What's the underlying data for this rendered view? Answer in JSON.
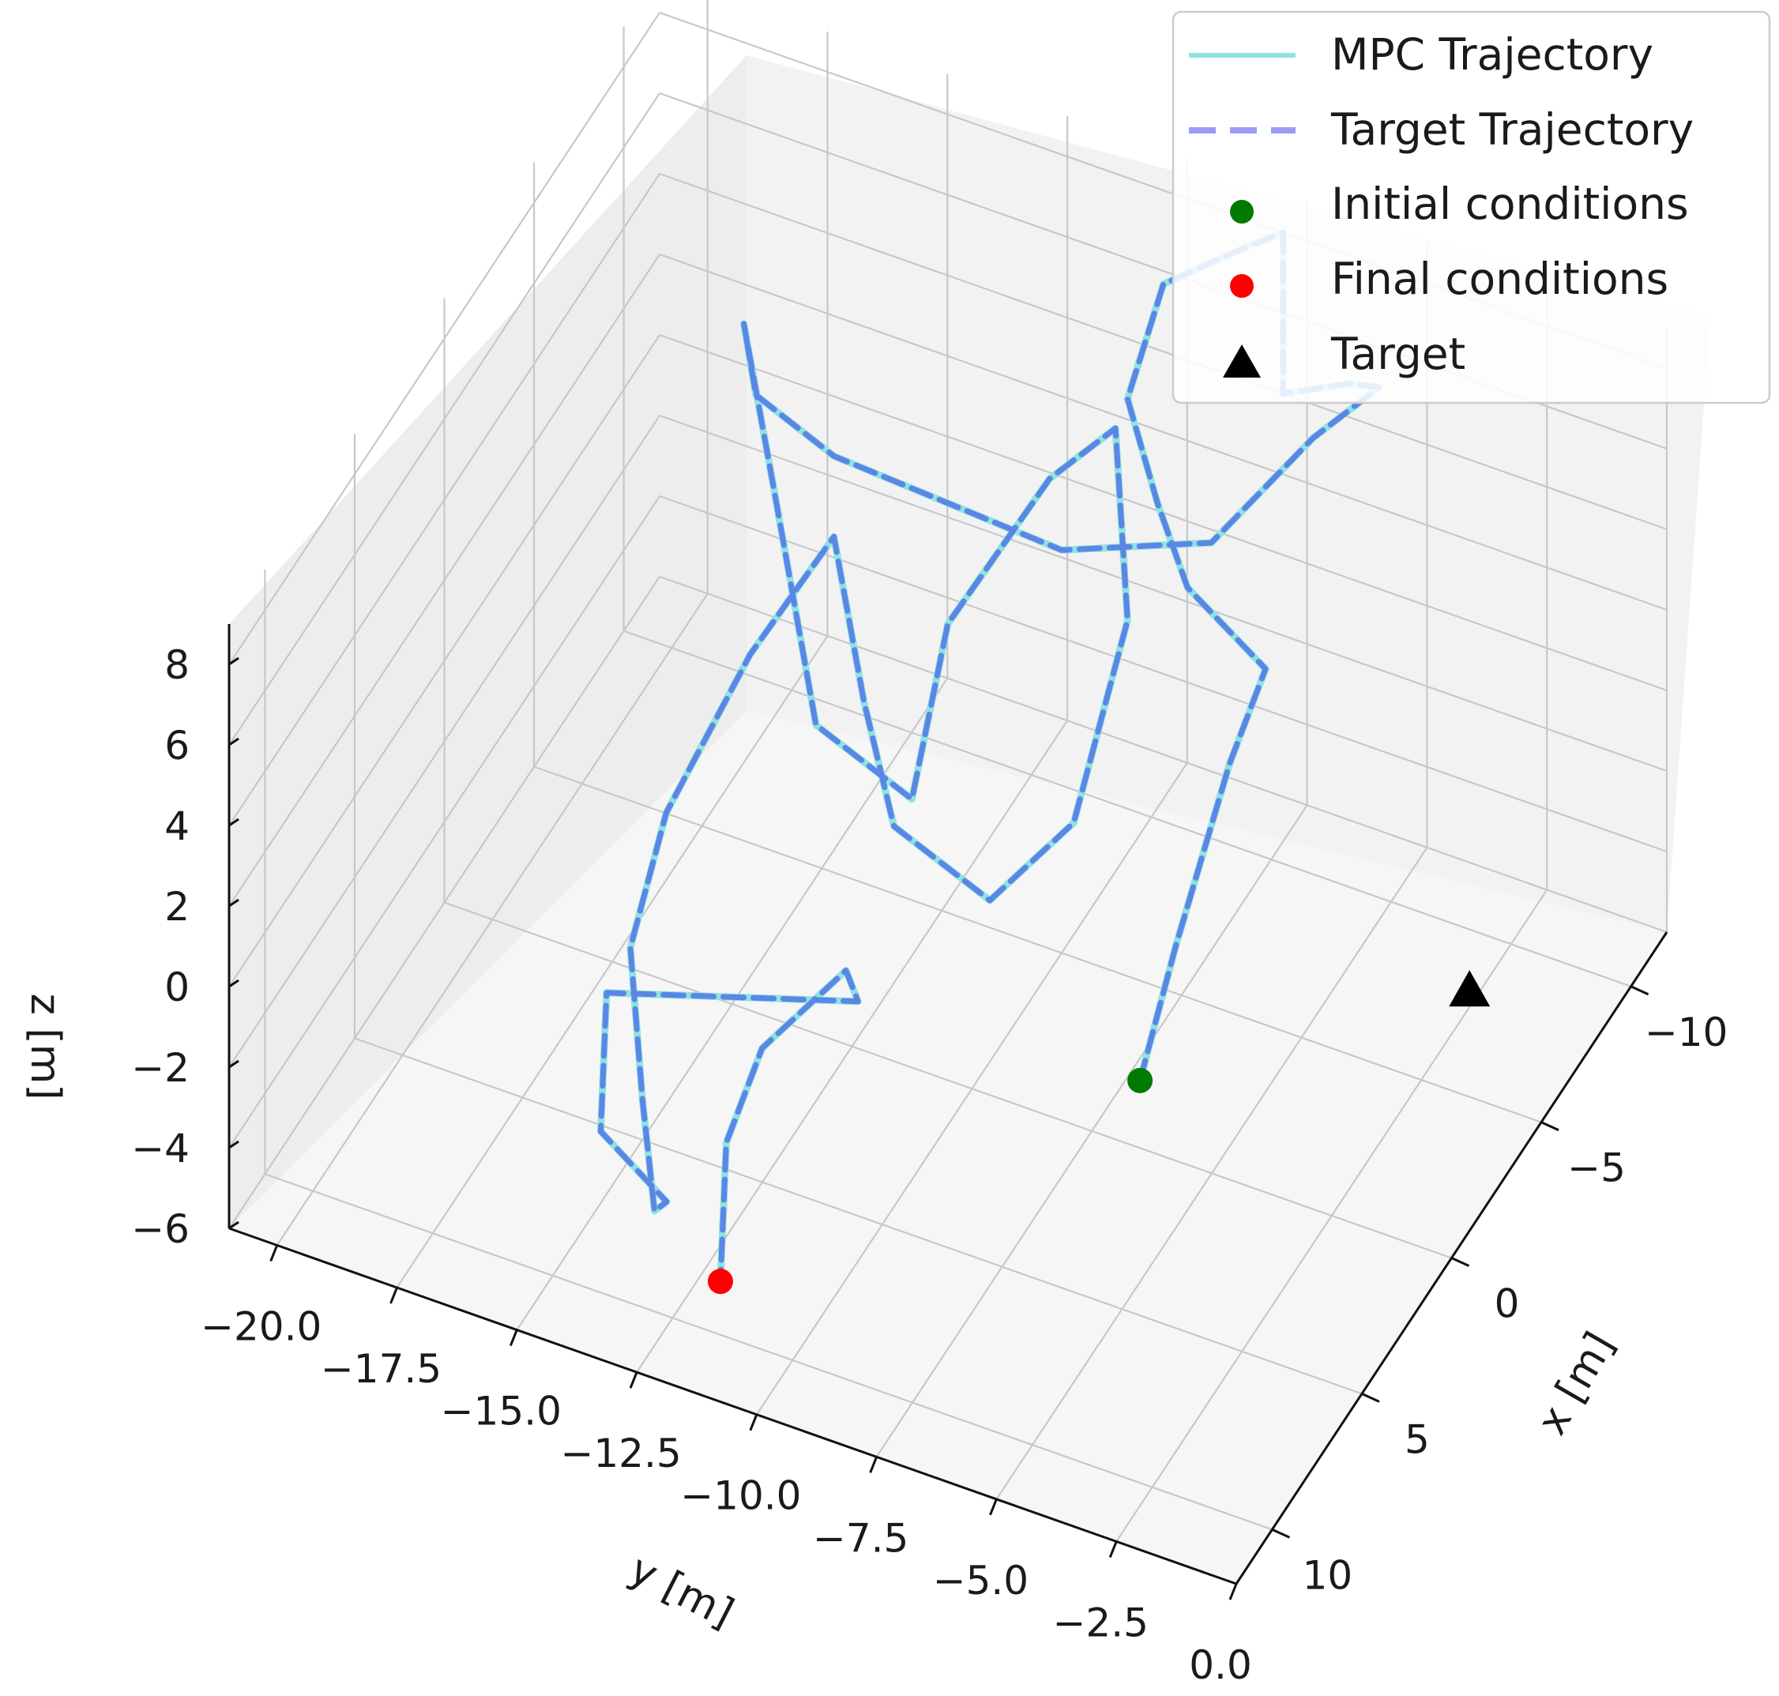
{
  "chart_data": {
    "type": "line3d",
    "title": "",
    "xlabel": "x [m]",
    "ylabel": "y [m]",
    "zlabel": "z [m]",
    "x_ticks": [
      "−10",
      "−5",
      "0",
      "5",
      "10"
    ],
    "y_ticks": [
      "−20.0",
      "−17.5",
      "−15.0",
      "−12.5",
      "−10.0",
      "−7.5",
      "−5.0",
      "−2.5",
      "0.0"
    ],
    "z_ticks": [
      "−6",
      "−4",
      "−2",
      "0",
      "2",
      "4",
      "6",
      "8"
    ],
    "xlim": [
      -12,
      12
    ],
    "ylim": [
      -21,
      0
    ],
    "zlim": [
      -6,
      9
    ],
    "grid": true,
    "legend": {
      "placement": "top-right",
      "entries": [
        {
          "label": "MPC Trajectory",
          "marker": "line",
          "color": "#8fe3e0"
        },
        {
          "label": "Target Trajectory",
          "marker": "dashed-line",
          "color": "#9b9bf6"
        },
        {
          "label": "Initial conditions",
          "marker": "circle",
          "color": "#007a00"
        },
        {
          "label": "Final conditions",
          "marker": "circle",
          "color": "#ff0000"
        },
        {
          "label": "Target",
          "marker": "triangle",
          "color": "#000000"
        }
      ]
    },
    "series": [
      {
        "name": "MPC Trajectory",
        "color": "#8fe3e0",
        "points_xyz": [
          [
            4,
            -5,
            -1
          ],
          [
            2,
            -5,
            1
          ],
          [
            -1,
            -5,
            3.5
          ],
          [
            -3,
            -5,
            4.5
          ],
          [
            -4,
            -7,
            5
          ],
          [
            -5,
            -8,
            6
          ],
          [
            -6,
            -9,
            7.5
          ],
          [
            -8,
            -9,
            9
          ],
          [
            -10,
            -8,
            9
          ],
          [
            -12,
            -8,
            8
          ],
          [
            -12,
            -8,
            4
          ],
          [
            -13,
            -7,
            4
          ],
          [
            -12,
            -6,
            5
          ],
          [
            -11,
            -7,
            4
          ],
          [
            -8,
            -8,
            3
          ],
          [
            -5,
            -10,
            4
          ],
          [
            -4,
            -12,
            5
          ],
          [
            -3,
            -14,
            6
          ],
          [
            -4,
            -16,
            6
          ],
          [
            -6,
            -17,
            6
          ],
          [
            -5,
            -16,
            3
          ],
          [
            -2,
            -14,
            0
          ],
          [
            -2,
            -12,
            -1
          ],
          [
            -4,
            -12,
            2
          ],
          [
            -7,
            -11,
            4
          ],
          [
            -8,
            -10,
            5
          ],
          [
            -6,
            -9,
            2
          ],
          [
            -3,
            -9,
            -1
          ],
          [
            -1,
            -10,
            -2
          ],
          [
            -1,
            -12,
            -1
          ],
          [
            -2,
            -13,
            1
          ],
          [
            -3,
            -14,
            4
          ],
          [
            -1,
            -15,
            2
          ],
          [
            1,
            -16,
            -1
          ],
          [
            3,
            -16,
            -3
          ],
          [
            5,
            -15,
            -5
          ],
          [
            7,
            -14,
            -6
          ],
          [
            9,
            -13,
            -4
          ],
          [
            10,
            -14,
            -2
          ],
          [
            7,
            -15,
            -1
          ],
          [
            5,
            -14,
            -2
          ],
          [
            3,
            -13,
            -3
          ],
          [
            1,
            -12,
            -4
          ],
          [
            -1,
            -13,
            -5
          ],
          [
            1,
            -14,
            -6
          ],
          [
            3,
            -14,
            -7
          ],
          [
            6,
            -13,
            -8
          ]
        ]
      },
      {
        "name": "Target Trajectory",
        "color": "#9b9bf6",
        "points_xyz": [
          [
            4,
            -5,
            -1
          ],
          [
            2,
            -5,
            1
          ],
          [
            -1,
            -5,
            3.5
          ],
          [
            -3,
            -5,
            4.5
          ],
          [
            -4,
            -7,
            5
          ],
          [
            -5,
            -8,
            6
          ],
          [
            -6,
            -9,
            7.5
          ],
          [
            -8,
            -9,
            9
          ],
          [
            -10,
            -8,
            9
          ],
          [
            -12,
            -8,
            8
          ],
          [
            -12,
            -8,
            4
          ],
          [
            -13,
            -7,
            4
          ],
          [
            -12,
            -6,
            5
          ],
          [
            -11,
            -7,
            4
          ],
          [
            -8,
            -8,
            3
          ],
          [
            -5,
            -10,
            4
          ],
          [
            -4,
            -12,
            5
          ],
          [
            -3,
            -14,
            6
          ],
          [
            -4,
            -16,
            6
          ],
          [
            -6,
            -17,
            6
          ],
          [
            -5,
            -16,
            3
          ],
          [
            -2,
            -14,
            0
          ],
          [
            -2,
            -12,
            -1
          ],
          [
            -4,
            -12,
            2
          ],
          [
            -7,
            -11,
            4
          ],
          [
            -8,
            -10,
            5
          ],
          [
            -6,
            -9,
            2
          ],
          [
            -3,
            -9,
            -1
          ],
          [
            -1,
            -10,
            -2
          ],
          [
            -1,
            -12,
            -1
          ],
          [
            -2,
            -13,
            1
          ],
          [
            -3,
            -14,
            4
          ],
          [
            -1,
            -15,
            2
          ],
          [
            1,
            -16,
            -1
          ],
          [
            3,
            -16,
            -3
          ],
          [
            5,
            -15,
            -5
          ],
          [
            7,
            -14,
            -6
          ],
          [
            9,
            -13,
            -4
          ],
          [
            10,
            -14,
            -2
          ],
          [
            7,
            -15,
            -1
          ],
          [
            5,
            -14,
            -2
          ],
          [
            3,
            -13,
            -3
          ],
          [
            1,
            -12,
            -4
          ],
          [
            -1,
            -13,
            -5
          ],
          [
            1,
            -14,
            -6
          ],
          [
            3,
            -14,
            -7
          ],
          [
            6,
            -13,
            -8
          ]
        ]
      }
    ],
    "markers": [
      {
        "name": "Initial conditions",
        "x": 4,
        "y": -5,
        "z": -1,
        "color": "#007a00"
      },
      {
        "name": "Final conditions",
        "x": 6,
        "y": -13,
        "z": -8,
        "color": "#ff0000"
      },
      {
        "name": "Target",
        "x": -1,
        "y": 0,
        "z": 0,
        "color": "#000000"
      }
    ]
  }
}
